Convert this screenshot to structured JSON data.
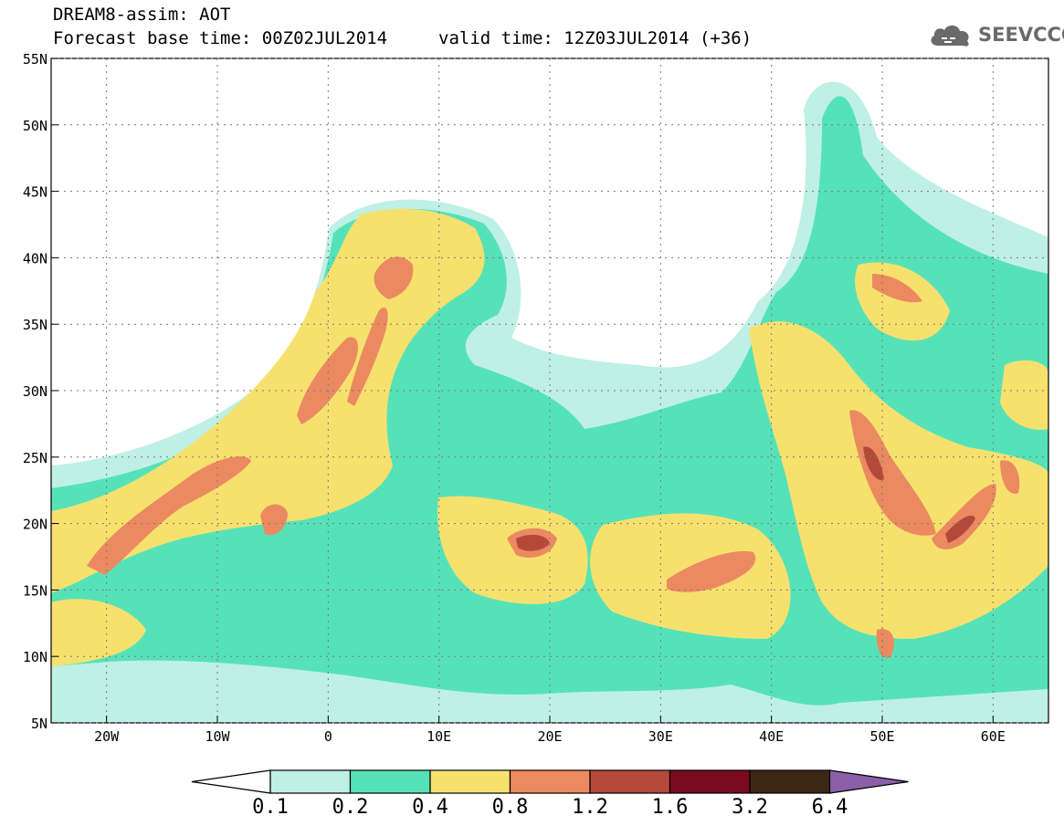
{
  "title": {
    "line1": "DREAM8-assim: AOT",
    "line2": "Forecast base time: 00Z02JUL2014",
    "valid": "valid time: 12Z03JUL2014 (+36)"
  },
  "logo": {
    "text": "SEEVCCC",
    "icon": "cloud-icon",
    "color": "#6a6a6a"
  },
  "map": {
    "lat_range": [
      5,
      55
    ],
    "lon_range": [
      -25,
      65
    ],
    "lat_ticks": [
      {
        "v": 55,
        "label": "55N"
      },
      {
        "v": 50,
        "label": "50N"
      },
      {
        "v": 45,
        "label": "45N"
      },
      {
        "v": 40,
        "label": "40N"
      },
      {
        "v": 35,
        "label": "35N"
      },
      {
        "v": 30,
        "label": "30N"
      },
      {
        "v": 25,
        "label": "25N"
      },
      {
        "v": 20,
        "label": "20N"
      },
      {
        "v": 15,
        "label": "15N"
      },
      {
        "v": 10,
        "label": "10N"
      },
      {
        "v": 5,
        "label": "5N"
      }
    ],
    "lon_ticks": [
      {
        "v": -20,
        "label": "20W"
      },
      {
        "v": -10,
        "label": "10W"
      },
      {
        "v": 0,
        "label": "0"
      },
      {
        "v": 10,
        "label": "10E"
      },
      {
        "v": 20,
        "label": "20E"
      },
      {
        "v": 30,
        "label": "30E"
      },
      {
        "v": 40,
        "label": "40E"
      },
      {
        "v": 50,
        "label": "50E"
      },
      {
        "v": 60,
        "label": "60E"
      }
    ]
  },
  "colorbar": {
    "under_color": "#ffffff",
    "over_color": "#8a5fa8",
    "bins": [
      "#bff0e6",
      "#56e2b8",
      "#f7e16e",
      "#eb8a60",
      "#b4493a",
      "#7a0a20",
      "#3c2614"
    ],
    "labels": [
      "0.1",
      "0.2",
      "0.4",
      "0.8",
      "1.2",
      "1.6",
      "3.2",
      "6.4"
    ]
  }
}
